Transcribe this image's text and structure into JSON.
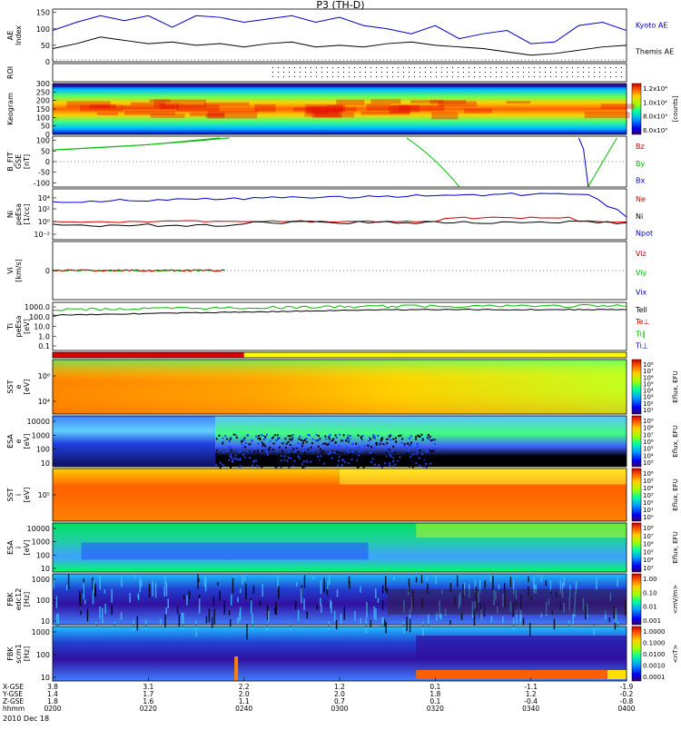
{
  "title": "P3 (TH-D)",
  "date": "2010 Dec 18",
  "chart_data": [
    {
      "type": "line",
      "panel": "ae",
      "ylabel": "AE Index",
      "yticks": [
        "150",
        "100",
        "50",
        "0"
      ],
      "ylim": [
        0,
        160
      ],
      "series": [
        {
          "name": "Kyoto AE",
          "color": "#0000cc",
          "x": [
            0,
            5,
            10,
            15,
            20,
            25,
            30,
            35,
            40,
            45,
            50,
            55,
            60,
            65,
            70,
            75,
            80,
            85,
            90,
            95,
            100,
            105,
            110,
            115,
            120
          ],
          "y": [
            95,
            120,
            140,
            125,
            140,
            105,
            140,
            135,
            120,
            130,
            140,
            120,
            135,
            110,
            100,
            85,
            110,
            70,
            85,
            95,
            55,
            60,
            110,
            120,
            95
          ]
        },
        {
          "name": "Themis AE",
          "color": "#000000",
          "x": [
            0,
            5,
            10,
            15,
            20,
            25,
            30,
            35,
            40,
            45,
            50,
            55,
            60,
            65,
            70,
            75,
            80,
            85,
            90,
            95,
            100,
            105,
            110,
            115,
            120
          ],
          "y": [
            40,
            55,
            75,
            65,
            55,
            60,
            50,
            55,
            45,
            55,
            60,
            45,
            50,
            45,
            55,
            60,
            50,
            45,
            40,
            30,
            20,
            25,
            35,
            45,
            50
          ]
        }
      ]
    },
    {
      "type": "heatmap",
      "panel": "roi",
      "ylabel": "ROI"
    },
    {
      "type": "heatmap",
      "panel": "keogram",
      "ylabel": "Keogram",
      "yticks": [
        "300",
        "250",
        "200",
        "150",
        "100",
        "50",
        "0"
      ],
      "colorbar_label": "[counts]",
      "colorbar_ticks": [
        "1.2x10⁴",
        "1.0x10⁴",
        "8.0x10³",
        "6.0x10³"
      ]
    },
    {
      "type": "line",
      "panel": "bfit",
      "ylabel": "B_FIT GSE [nT]",
      "yticks": [
        "100",
        "50",
        "0",
        "-50",
        "-100"
      ],
      "ylim": [
        -120,
        120
      ],
      "series": [
        {
          "name": "Bz",
          "color": "#cc0000"
        },
        {
          "name": "By",
          "color": "#00bb00"
        },
        {
          "name": "Bx",
          "color": "#0000cc"
        }
      ]
    },
    {
      "type": "line",
      "panel": "ni",
      "ylabel": "Ni peEsa [1/cc]",
      "yticks": [
        "10⁴",
        "10²",
        "10⁰",
        "10⁻²"
      ],
      "series": [
        {
          "name": "Ne",
          "color": "#cc0000"
        },
        {
          "name": "Ni",
          "color": "#000000"
        },
        {
          "name": "Npot",
          "color": "#0000cc"
        }
      ]
    },
    {
      "type": "line",
      "panel": "vi",
      "ylabel": "Vi [km/s]",
      "yticks": [
        "0"
      ],
      "series": [
        {
          "name": "Viz",
          "color": "#cc0000"
        },
        {
          "name": "Viy",
          "color": "#00bb00"
        },
        {
          "name": "Vix",
          "color": "#0000cc"
        }
      ]
    },
    {
      "type": "line",
      "panel": "ti",
      "ylabel": "Ti peEsa [eV]",
      "yticks": [
        "1000.0",
        "100.0",
        "10.0",
        "1.0",
        "0.1"
      ],
      "series": [
        {
          "name": "Tell",
          "color": "#000000"
        },
        {
          "name": "Te⊥",
          "color": "#cc0000"
        },
        {
          "name": "Ti∥",
          "color": "#00bb00"
        },
        {
          "name": "Ti⊥",
          "color": "#0000cc"
        }
      ]
    },
    {
      "type": "heatmap",
      "panel": "modebar"
    },
    {
      "type": "heatmap",
      "panel": "sst_e",
      "ylabel": "SST e [eV]",
      "yticks": [
        "10⁶",
        "10⁴"
      ],
      "colorbar_label": "Eflux, EFU",
      "colorbar_ticks": [
        "10⁸",
        "10⁷",
        "10⁶",
        "10⁵",
        "10⁴",
        "10³",
        "10²",
        "10¹"
      ]
    },
    {
      "type": "heatmap",
      "panel": "esa_e",
      "ylabel": "ESA e [eV]",
      "yticks": [
        "10000",
        "1000",
        "100",
        "10"
      ],
      "colorbar_label": "Eflux, EFU",
      "colorbar_ticks": [
        "10⁹",
        "10⁸",
        "10⁷",
        "10⁶",
        "10⁵",
        "10⁴",
        "10³"
      ]
    },
    {
      "type": "heatmap",
      "panel": "sst_i",
      "ylabel": "SST i [eV]",
      "yticks": [
        "10⁵"
      ],
      "colorbar_label": "Eflux, EFU",
      "colorbar_ticks": [
        "10⁶",
        "10⁵",
        "10⁴",
        "10³",
        "10²",
        "10¹",
        "10⁰"
      ]
    },
    {
      "type": "heatmap",
      "panel": "esa_i",
      "ylabel": "ESA i [eV]",
      "yticks": [
        "10000",
        "1000",
        "100",
        "10"
      ],
      "colorbar_label": "Eflux, EFU",
      "colorbar_ticks": [
        "10⁸",
        "10⁷",
        "10⁶",
        "10⁵",
        "10⁴",
        "10³"
      ]
    },
    {
      "type": "heatmap",
      "panel": "fbk1",
      "ylabel": "FBK edc12 [Hz]",
      "yticks": [
        "1000",
        "100",
        "10"
      ],
      "colorbar_label": "<mV/m>",
      "colorbar_ticks": [
        "1.00",
        "0.10",
        "0.01",
        "0.001"
      ]
    },
    {
      "type": "heatmap",
      "panel": "fbk2",
      "ylabel": "FBK scm1 [Hz]",
      "yticks": [
        "1000",
        "100",
        "10"
      ],
      "colorbar_label": "<nT>",
      "colorbar_ticks": [
        "1.0000",
        "0.1000",
        "0.0100",
        "0.0010",
        "0.0001"
      ]
    }
  ],
  "xaxis": {
    "row_labels": [
      "X-GSE",
      "Y-GSE",
      "Z-GSE",
      "hhmm"
    ],
    "columns": [
      {
        "values": [
          "3.8",
          "1.4",
          "1.8",
          "0200"
        ]
      },
      {
        "values": [
          "3.1",
          "1.7",
          "1.6",
          "0220"
        ]
      },
      {
        "values": [
          "2.2",
          "2.0",
          "1.1",
          "0240"
        ]
      },
      {
        "values": [
          "1.2",
          "2.0",
          "0.7",
          "0300"
        ]
      },
      {
        "values": [
          "0.1",
          "1.8",
          "0.1",
          "0320"
        ]
      },
      {
        "values": [
          "-1.1",
          "1.2",
          "-0.4",
          "0340"
        ]
      },
      {
        "values": [
          "-1.9",
          "-0.2",
          "-0.8",
          "0400"
        ]
      }
    ]
  }
}
